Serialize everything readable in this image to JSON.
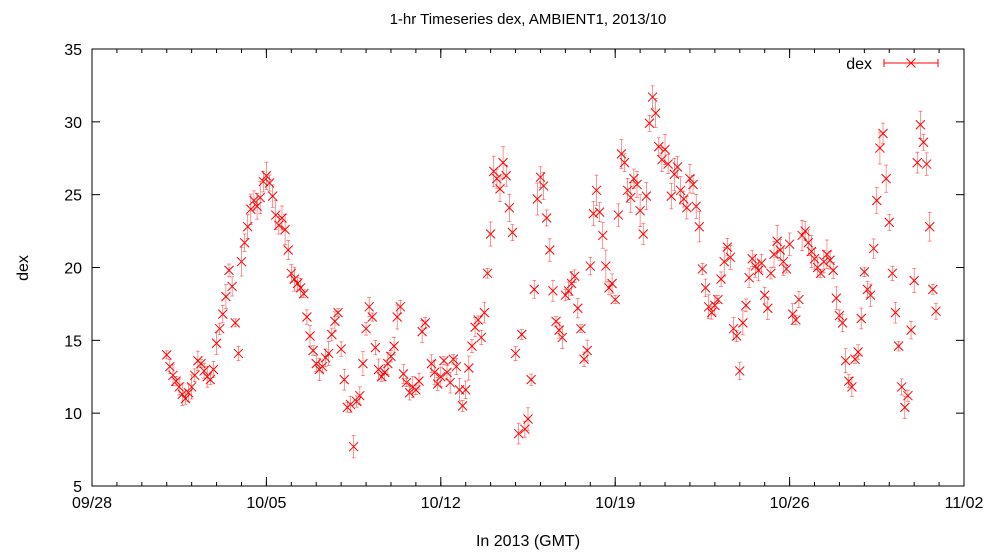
{
  "chart_data": {
    "type": "scatter",
    "title": "1-hr Timeseries dex, AMBIENT1, 2013/10",
    "xlabel": "In 2013 (GMT)",
    "ylabel": "dex",
    "xlim": [
      "2013-09-28",
      "2013-11-02"
    ],
    "ylim": [
      5,
      35
    ],
    "x_ticks": [
      "09/28",
      "10/05",
      "10/12",
      "10/19",
      "10/26",
      "11/02"
    ],
    "y_ticks": [
      "5",
      "10",
      "15",
      "20",
      "25",
      "30",
      "35"
    ],
    "grid": false,
    "legend": "top-right",
    "color": "#ff0000",
    "error_bars": true,
    "series": [
      {
        "name": "dex",
        "points": [
          [
            "2013-10-01T00",
            14.0
          ],
          [
            "2013-10-01T03",
            13.2
          ],
          [
            "2013-10-01T06",
            12.6
          ],
          [
            "2013-10-01T09",
            12.2
          ],
          [
            "2013-10-01T12",
            11.8
          ],
          [
            "2013-10-01T15",
            11.3
          ],
          [
            "2013-10-01T18",
            11.0
          ],
          [
            "2013-10-01T21",
            11.4
          ],
          [
            "2013-10-02T00",
            11.8
          ],
          [
            "2013-10-02T03",
            12.6
          ],
          [
            "2013-10-02T06",
            13.6
          ],
          [
            "2013-10-02T09",
            13.4
          ],
          [
            "2013-10-02T12",
            12.9
          ],
          [
            "2013-10-02T15",
            12.5
          ],
          [
            "2013-10-02T18",
            12.3
          ],
          [
            "2013-10-02T21",
            13.0
          ],
          [
            "2013-10-03T00",
            14.8
          ],
          [
            "2013-10-03T03",
            15.8
          ],
          [
            "2013-10-03T06",
            16.8
          ],
          [
            "2013-10-03T09",
            18.0
          ],
          [
            "2013-10-03T12",
            19.8
          ],
          [
            "2013-10-03T15",
            18.7
          ],
          [
            "2013-10-03T18",
            16.2
          ],
          [
            "2013-10-03T21",
            14.1
          ],
          [
            "2013-10-04T00",
            20.4
          ],
          [
            "2013-10-04T03",
            21.7
          ],
          [
            "2013-10-04T06",
            22.8
          ],
          [
            "2013-10-04T09",
            24.0
          ],
          [
            "2013-10-04T12",
            24.6
          ],
          [
            "2013-10-04T15",
            24.2
          ],
          [
            "2013-10-04T18",
            24.8
          ],
          [
            "2013-10-04T21",
            25.9
          ],
          [
            "2013-10-05T00",
            26.3
          ],
          [
            "2013-10-05T03",
            25.8
          ],
          [
            "2013-10-05T06",
            24.9
          ],
          [
            "2013-10-05T09",
            23.6
          ],
          [
            "2013-10-05T12",
            22.9
          ],
          [
            "2013-10-05T15",
            23.4
          ],
          [
            "2013-10-05T18",
            22.6
          ],
          [
            "2013-10-05T21",
            21.2
          ],
          [
            "2013-10-06T00",
            19.6
          ],
          [
            "2013-10-06T03",
            19.2
          ],
          [
            "2013-10-06T06",
            18.9
          ],
          [
            "2013-10-06T09",
            18.6
          ],
          [
            "2013-10-06T12",
            18.2
          ],
          [
            "2013-10-06T15",
            16.6
          ],
          [
            "2013-10-06T18",
            15.3
          ],
          [
            "2013-10-06T21",
            14.3
          ],
          [
            "2013-10-07T00",
            13.4
          ],
          [
            "2013-10-07T03",
            13.0
          ],
          [
            "2013-10-07T06",
            13.2
          ],
          [
            "2013-10-07T09",
            13.8
          ],
          [
            "2013-10-07T12",
            14.1
          ],
          [
            "2013-10-07T15",
            15.4
          ],
          [
            "2013-10-07T18",
            16.3
          ],
          [
            "2013-10-07T21",
            16.9
          ],
          [
            "2013-10-08T00",
            14.4
          ],
          [
            "2013-10-08T03",
            12.3
          ],
          [
            "2013-10-08T06",
            10.4
          ],
          [
            "2013-10-08T09",
            10.6
          ],
          [
            "2013-10-08T12",
            7.7
          ],
          [
            "2013-10-08T15",
            10.8
          ],
          [
            "2013-10-08T18",
            11.2
          ],
          [
            "2013-10-08T21",
            13.4
          ],
          [
            "2013-10-09T00",
            15.8
          ],
          [
            "2013-10-09T03",
            17.3
          ],
          [
            "2013-10-09T06",
            16.6
          ],
          [
            "2013-10-09T09",
            14.5
          ],
          [
            "2013-10-09T12",
            13.0
          ],
          [
            "2013-10-09T15",
            12.5
          ],
          [
            "2013-10-09T18",
            12.8
          ],
          [
            "2013-10-09T21",
            13.4
          ],
          [
            "2013-10-10T00",
            13.9
          ],
          [
            "2013-10-10T03",
            14.6
          ],
          [
            "2013-10-10T06",
            16.6
          ],
          [
            "2013-10-10T09",
            17.3
          ],
          [
            "2013-10-10T12",
            12.7
          ],
          [
            "2013-10-10T15",
            12.1
          ],
          [
            "2013-10-10T18",
            11.4
          ],
          [
            "2013-10-10T21",
            11.8
          ],
          [
            "2013-10-11T00",
            11.6
          ],
          [
            "2013-10-11T03",
            12.2
          ],
          [
            "2013-10-11T06",
            15.6
          ],
          [
            "2013-10-11T09",
            16.2
          ],
          [
            "2013-10-11T15",
            13.4
          ],
          [
            "2013-10-11T18",
            12.8
          ],
          [
            "2013-10-11T21",
            12.0
          ],
          [
            "2013-10-12T00",
            12.5
          ],
          [
            "2013-10-12T03",
            13.6
          ],
          [
            "2013-10-12T06",
            12.8
          ],
          [
            "2013-10-12T09",
            12.1
          ],
          [
            "2013-10-12T12",
            13.7
          ],
          [
            "2013-10-12T15",
            13.2
          ],
          [
            "2013-10-12T18",
            11.6
          ],
          [
            "2013-10-12T21",
            10.5
          ],
          [
            "2013-10-13T00",
            11.6
          ],
          [
            "2013-10-13T03",
            13.1
          ],
          [
            "2013-10-13T06",
            14.6
          ],
          [
            "2013-10-13T09",
            15.9
          ],
          [
            "2013-10-13T12",
            16.4
          ],
          [
            "2013-10-13T15",
            15.2
          ],
          [
            "2013-10-13T18",
            16.9
          ],
          [
            "2013-10-13T21",
            19.6
          ],
          [
            "2013-10-14T00",
            22.3
          ],
          [
            "2013-10-14T03",
            26.6
          ],
          [
            "2013-10-14T06",
            26.1
          ],
          [
            "2013-10-14T09",
            25.4
          ],
          [
            "2013-10-14T12",
            27.2
          ],
          [
            "2013-10-14T15",
            26.3
          ],
          [
            "2013-10-14T18",
            24.1
          ],
          [
            "2013-10-14T21",
            22.4
          ],
          [
            "2013-10-15T00",
            14.1
          ],
          [
            "2013-10-15T03",
            8.6
          ],
          [
            "2013-10-15T06",
            15.4
          ],
          [
            "2013-10-15T09",
            8.9
          ],
          [
            "2013-10-15T12",
            9.6
          ],
          [
            "2013-10-15T15",
            12.3
          ],
          [
            "2013-10-15T18",
            18.5
          ],
          [
            "2013-10-15T21",
            24.7
          ],
          [
            "2013-10-16T00",
            26.2
          ],
          [
            "2013-10-16T03",
            25.6
          ],
          [
            "2013-10-16T06",
            23.4
          ],
          [
            "2013-10-16T09",
            21.2
          ],
          [
            "2013-10-16T12",
            18.4
          ],
          [
            "2013-10-16T15",
            16.3
          ],
          [
            "2013-10-16T18",
            15.7
          ],
          [
            "2013-10-16T21",
            15.2
          ],
          [
            "2013-10-17T00",
            18.1
          ],
          [
            "2013-10-17T03",
            18.4
          ],
          [
            "2013-10-17T06",
            18.9
          ],
          [
            "2013-10-17T09",
            19.4
          ],
          [
            "2013-10-17T12",
            17.2
          ],
          [
            "2013-10-17T15",
            15.8
          ],
          [
            "2013-10-17T18",
            13.7
          ],
          [
            "2013-10-17T21",
            14.3
          ],
          [
            "2013-10-18T00",
            20.1
          ],
          [
            "2013-10-18T03",
            23.7
          ],
          [
            "2013-10-18T06",
            25.3
          ],
          [
            "2013-10-18T09",
            23.8
          ],
          [
            "2013-10-18T12",
            22.2
          ],
          [
            "2013-10-18T15",
            20.1
          ],
          [
            "2013-10-18T18",
            18.6
          ],
          [
            "2013-10-18T21",
            18.9
          ],
          [
            "2013-10-19T00",
            17.8
          ],
          [
            "2013-10-19T03",
            23.6
          ],
          [
            "2013-10-19T06",
            27.8
          ],
          [
            "2013-10-19T09",
            27.2
          ],
          [
            "2013-10-19T12",
            25.3
          ],
          [
            "2013-10-19T15",
            24.8
          ],
          [
            "2013-10-19T18",
            26.1
          ],
          [
            "2013-10-19T21",
            25.7
          ],
          [
            "2013-10-20T00",
            23.9
          ],
          [
            "2013-10-20T03",
            22.3
          ],
          [
            "2013-10-20T06",
            24.9
          ],
          [
            "2013-10-20T09",
            29.9
          ],
          [
            "2013-10-20T12",
            31.7
          ],
          [
            "2013-10-20T15",
            30.6
          ],
          [
            "2013-10-20T18",
            28.3
          ],
          [
            "2013-10-20T21",
            27.4
          ],
          [
            "2013-10-21T00",
            28.1
          ],
          [
            "2013-10-21T03",
            27.1
          ],
          [
            "2013-10-21T06",
            24.9
          ],
          [
            "2013-10-21T09",
            26.4
          ],
          [
            "2013-10-21T12",
            26.9
          ],
          [
            "2013-10-21T15",
            25.3
          ],
          [
            "2013-10-21T18",
            24.7
          ],
          [
            "2013-10-21T21",
            24.1
          ],
          [
            "2013-10-22T00",
            26.1
          ],
          [
            "2013-10-22T03",
            25.7
          ],
          [
            "2013-10-22T06",
            24.2
          ],
          [
            "2013-10-22T09",
            22.8
          ],
          [
            "2013-10-22T12",
            19.9
          ],
          [
            "2013-10-22T15",
            18.6
          ],
          [
            "2013-10-22T18",
            17.3
          ],
          [
            "2013-10-22T21",
            16.9
          ],
          [
            "2013-10-23T00",
            17.4
          ],
          [
            "2013-10-23T03",
            17.8
          ],
          [
            "2013-10-23T06",
            19.2
          ],
          [
            "2013-10-23T09",
            20.4
          ],
          [
            "2013-10-23T12",
            21.4
          ],
          [
            "2013-10-23T15",
            20.7
          ],
          [
            "2013-10-23T18",
            15.8
          ],
          [
            "2013-10-23T21",
            15.3
          ],
          [
            "2013-10-24T00",
            12.9
          ],
          [
            "2013-10-24T03",
            16.2
          ],
          [
            "2013-10-24T06",
            17.4
          ],
          [
            "2013-10-24T09",
            19.3
          ],
          [
            "2013-10-24T12",
            20.6
          ],
          [
            "2013-10-24T15",
            20.1
          ],
          [
            "2013-10-24T18",
            19.8
          ],
          [
            "2013-10-24T21",
            20.3
          ],
          [
            "2013-10-25T00",
            18.1
          ],
          [
            "2013-10-25T03",
            17.2
          ],
          [
            "2013-10-25T06",
            19.6
          ],
          [
            "2013-10-25T09",
            20.9
          ],
          [
            "2013-10-25T12",
            21.8
          ],
          [
            "2013-10-25T15",
            21.2
          ],
          [
            "2013-10-25T18",
            20.4
          ],
          [
            "2013-10-25T21",
            19.9
          ],
          [
            "2013-10-26T00",
            21.6
          ],
          [
            "2013-10-26T03",
            16.8
          ],
          [
            "2013-10-26T06",
            16.4
          ],
          [
            "2013-10-26T09",
            17.8
          ],
          [
            "2013-10-26T12",
            22.2
          ],
          [
            "2013-10-26T15",
            22.5
          ],
          [
            "2013-10-26T18",
            21.7
          ],
          [
            "2013-10-26T21",
            21.1
          ],
          [
            "2013-10-27T00",
            20.6
          ],
          [
            "2013-10-27T03",
            20.0
          ],
          [
            "2013-10-27T06",
            19.6
          ],
          [
            "2013-10-27T09",
            20.4
          ],
          [
            "2013-10-27T12",
            20.9
          ],
          [
            "2013-10-27T15",
            20.5
          ],
          [
            "2013-10-27T18",
            19.8
          ],
          [
            "2013-10-27T21",
            17.9
          ],
          [
            "2013-10-28T00",
            16.7
          ],
          [
            "2013-10-28T03",
            16.2
          ],
          [
            "2013-10-28T06",
            13.6
          ],
          [
            "2013-10-28T09",
            12.2
          ],
          [
            "2013-10-28T12",
            11.8
          ],
          [
            "2013-10-28T15",
            13.7
          ],
          [
            "2013-10-28T18",
            14.2
          ],
          [
            "2013-10-28T21",
            16.5
          ],
          [
            "2013-10-29T00",
            19.7
          ],
          [
            "2013-10-29T03",
            18.5
          ],
          [
            "2013-10-29T06",
            18.1
          ],
          [
            "2013-10-29T09",
            21.3
          ],
          [
            "2013-10-29T12",
            24.6
          ],
          [
            "2013-10-29T15",
            28.2
          ],
          [
            "2013-10-29T18",
            29.2
          ],
          [
            "2013-10-29T21",
            26.1
          ],
          [
            "2013-10-30T00",
            23.1
          ],
          [
            "2013-10-30T03",
            19.6
          ],
          [
            "2013-10-30T06",
            16.9
          ],
          [
            "2013-10-30T09",
            14.6
          ],
          [
            "2013-10-30T12",
            11.8
          ],
          [
            "2013-10-30T15",
            10.4
          ],
          [
            "2013-10-30T18",
            11.2
          ],
          [
            "2013-10-30T21",
            15.7
          ],
          [
            "2013-10-31T00",
            19.1
          ],
          [
            "2013-10-31T03",
            27.2
          ],
          [
            "2013-10-31T06",
            29.8
          ],
          [
            "2013-10-31T09",
            28.6
          ],
          [
            "2013-10-31T12",
            27.1
          ],
          [
            "2013-10-31T15",
            22.8
          ],
          [
            "2013-10-31T18",
            18.5
          ],
          [
            "2013-10-31T21",
            17.0
          ]
        ]
      }
    ]
  }
}
